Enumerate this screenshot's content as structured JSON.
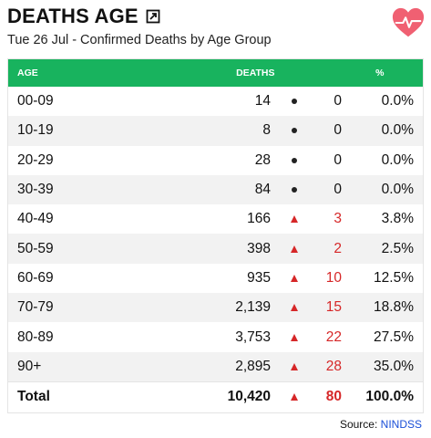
{
  "header": {
    "title": "DEATHS AGE",
    "subtitle": "Tue 26 Jul - Confirmed Deaths by Age Group"
  },
  "colors": {
    "header_bg": "#18b35e",
    "increase": "#d62728",
    "link": "#1a4fd8"
  },
  "icons": {
    "expand": "external-link-icon",
    "logo": "heart-pulse-icon"
  },
  "chart_data": {
    "type": "table",
    "columns": [
      "AGE",
      "DEATHS",
      "",
      "%"
    ],
    "rows": [
      {
        "age": "00-09",
        "deaths": "14",
        "indicator": "dot",
        "new": "0",
        "pct": "0.0%"
      },
      {
        "age": "10-19",
        "deaths": "8",
        "indicator": "dot",
        "new": "0",
        "pct": "0.0%"
      },
      {
        "age": "20-29",
        "deaths": "28",
        "indicator": "dot",
        "new": "0",
        "pct": "0.0%"
      },
      {
        "age": "30-39",
        "deaths": "84",
        "indicator": "dot",
        "new": "0",
        "pct": "0.0%"
      },
      {
        "age": "40-49",
        "deaths": "166",
        "indicator": "up",
        "new": "3",
        "pct": "3.8%"
      },
      {
        "age": "50-59",
        "deaths": "398",
        "indicator": "up",
        "new": "2",
        "pct": "2.5%"
      },
      {
        "age": "60-69",
        "deaths": "935",
        "indicator": "up",
        "new": "10",
        "pct": "12.5%"
      },
      {
        "age": "70-79",
        "deaths": "2,139",
        "indicator": "up",
        "new": "15",
        "pct": "18.8%"
      },
      {
        "age": "80-89",
        "deaths": "3,753",
        "indicator": "up",
        "new": "22",
        "pct": "27.5%"
      },
      {
        "age": "90+",
        "deaths": "2,895",
        "indicator": "up",
        "new": "28",
        "pct": "35.0%"
      }
    ],
    "total": {
      "age": "Total",
      "deaths": "10,420",
      "indicator": "up",
      "new": "80",
      "pct": "100.0%"
    }
  },
  "footer": {
    "source_label": "Source:",
    "source_link": "NINDSS"
  }
}
